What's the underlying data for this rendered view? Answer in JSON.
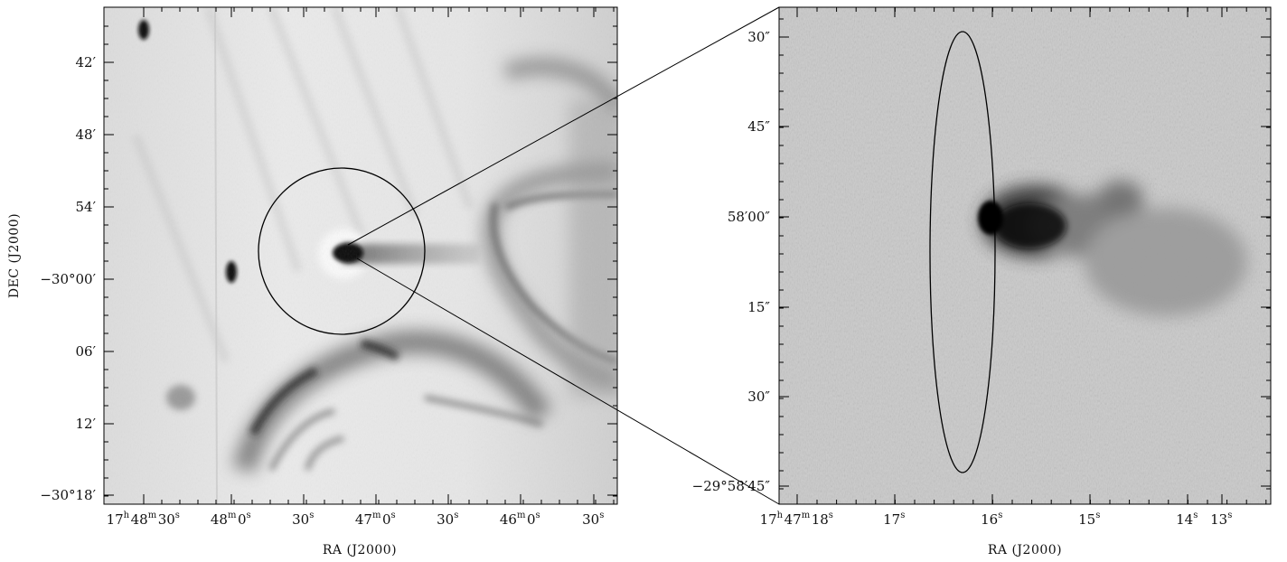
{
  "chart_data": [
    {
      "type": "image",
      "name": "wide-field radio image",
      "xlabel": "RA (J2000)",
      "ylabel": "DEC (J2000)",
      "x_ticks": [
        {
          "h": "17",
          "m": "48",
          "s": "30",
          "label": "17h48m30s"
        },
        {
          "m": "48",
          "s": "0",
          "label": "48m0s"
        },
        {
          "s": "30",
          "label": "30s"
        },
        {
          "m": "47",
          "s": "0",
          "label": "47m0s"
        },
        {
          "s": "30",
          "label": "30s"
        },
        {
          "m": "46",
          "s": "0",
          "label": "46m0s"
        },
        {
          "s": "30",
          "label": "30s"
        }
      ],
      "y_ticks": [
        "42′",
        "48′",
        "54′",
        "−30°00′",
        "06′",
        "12′",
        "−30°18′"
      ],
      "annotation": "circle marking zoom region"
    },
    {
      "type": "image",
      "name": "zoomed radio image",
      "xlabel": "RA (J2000)",
      "ylabel": "",
      "x_ticks": [
        {
          "h": "17",
          "m": "47",
          "s": "18",
          "label": "17h47m18s"
        },
        {
          "s": "17",
          "label": "17s"
        },
        {
          "s": "16",
          "label": "16s"
        },
        {
          "s": "15",
          "label": "15s"
        },
        {
          "s": "14",
          "label": "14s"
        },
        {
          "s": "13",
          "label": "13s"
        }
      ],
      "y_ticks": [
        "30″",
        "45″",
        "58′00″",
        "15″",
        "30″",
        "−29°58′45″"
      ],
      "annotation": "ellipse marking beam/region"
    }
  ]
}
